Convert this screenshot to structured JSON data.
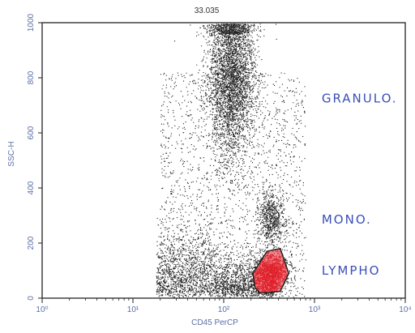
{
  "chart_data": {
    "type": "scatter",
    "top_value": "33.035",
    "xlabel": "CD45 PerCP",
    "ylabel": "SSC-H",
    "x_scale": "log",
    "xlim": [
      1,
      10000
    ],
    "ylim": [
      0,
      1000
    ],
    "x_tick_labels": [
      "10⁰",
      "10¹",
      "10²",
      "10³",
      "10⁴"
    ],
    "x_ticks": [
      1,
      10,
      100,
      1000,
      10000
    ],
    "y_tick_labels": [
      "0",
      "200",
      "400",
      "600",
      "800",
      "1000"
    ],
    "y_ticks": [
      0,
      200,
      400,
      600,
      800,
      1000
    ],
    "grid": false,
    "annotations": [
      {
        "text": "GRANULO.",
        "x": 1200,
        "y": 710
      },
      {
        "text": "MONO.",
        "x": 1200,
        "y": 270
      },
      {
        "text": "LYMPHO",
        "x": 1200,
        "y": 85
      }
    ],
    "gate": {
      "name": "LYMPHO",
      "color": "#e0202a",
      "polygon": [
        [
          220,
          40
        ],
        [
          250,
          18
        ],
        [
          420,
          25
        ],
        [
          520,
          90
        ],
        [
          420,
          180
        ],
        [
          300,
          170
        ],
        [
          210,
          90
        ]
      ]
    },
    "populations": [
      {
        "name": "GRANULO.",
        "center_x": 120,
        "center_y": 820,
        "count": 5200
      },
      {
        "name": "MONO.",
        "center_x": 330,
        "center_y": 290,
        "count": 700
      },
      {
        "name": "LYMPHO",
        "center_x": 330,
        "center_y": 90,
        "count": 1600
      }
    ],
    "dot_color": "#222222"
  }
}
